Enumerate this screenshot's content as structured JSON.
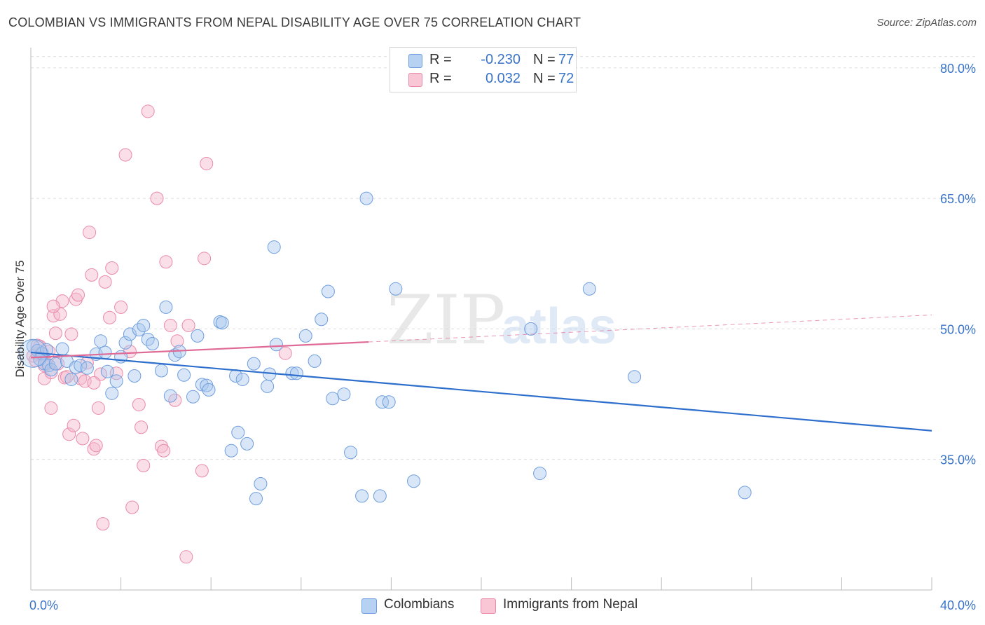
{
  "title": "COLOMBIAN VS IMMIGRANTS FROM NEPAL DISABILITY AGE OVER 75 CORRELATION CHART",
  "source": "Source: ZipAtlas.com",
  "watermark": {
    "zip": "ZIP",
    "atlas": "atlas"
  },
  "legend": {
    "series1": {
      "r_label": "R =",
      "r_value": "-0.230",
      "n_label": "N =",
      "n_value": "77"
    },
    "series2": {
      "r_label": "R =",
      "r_value": "0.032",
      "n_label": "N =",
      "n_value": "72"
    }
  },
  "colors": {
    "blue_fill": "#a9c8ee",
    "blue_stroke": "#6f9ede",
    "blue_line": "#2e6fcd",
    "pink_fill": "#f5b8cb",
    "pink_stroke": "#ea8aa8",
    "pink_line": "#e06a96",
    "tick_text": "#3a74c8",
    "grid": "#dcdcdc"
  },
  "chart_data": {
    "type": "scatter",
    "title": "COLOMBIAN VS IMMIGRANTS FROM NEPAL DISABILITY AGE OVER 75 CORRELATION CHART",
    "xlabel": "",
    "ylabel": "Disability Age Over 75",
    "xlim": [
      0,
      40
    ],
    "ylim": [
      20,
      82
    ],
    "x_tick_labels": [
      "0.0%",
      "40.0%"
    ],
    "y_ticks": [
      35,
      50,
      65,
      80
    ],
    "y_tick_labels": [
      "35.0%",
      "50.0%",
      "65.0%",
      "80.0%"
    ],
    "grid": true,
    "legend_position": "bottom",
    "series": [
      {
        "name": "Colombians",
        "color": "#6f9ede",
        "trend": {
          "x": [
            0,
            40
          ],
          "y": [
            47.3,
            38.3
          ],
          "dashed_extension": false
        },
        "points": [
          [
            0.1,
            48.0
          ],
          [
            0.3,
            47.5
          ],
          [
            0.4,
            46.5
          ],
          [
            0.5,
            47.2
          ],
          [
            0.6,
            46.0
          ],
          [
            0.7,
            47.6
          ],
          [
            0.8,
            45.8
          ],
          [
            0.9,
            45.3
          ],
          [
            1.1,
            46.0
          ],
          [
            1.4,
            47.7
          ],
          [
            1.6,
            46.3
          ],
          [
            1.8,
            44.2
          ],
          [
            2.0,
            45.6
          ],
          [
            2.2,
            45.8
          ],
          [
            2.5,
            45.5
          ],
          [
            2.9,
            47.1
          ],
          [
            3.1,
            48.6
          ],
          [
            3.3,
            47.3
          ],
          [
            3.4,
            45.1
          ],
          [
            3.6,
            42.6
          ],
          [
            3.8,
            44.0
          ],
          [
            4.0,
            46.8
          ],
          [
            4.2,
            48.4
          ],
          [
            4.4,
            49.4
          ],
          [
            4.6,
            44.6
          ],
          [
            4.8,
            49.9
          ],
          [
            5.0,
            50.4
          ],
          [
            5.2,
            48.8
          ],
          [
            5.4,
            48.3
          ],
          [
            5.8,
            45.2
          ],
          [
            6.0,
            52.5
          ],
          [
            6.2,
            42.3
          ],
          [
            6.4,
            47.0
          ],
          [
            6.6,
            47.4
          ],
          [
            6.8,
            44.7
          ],
          [
            7.2,
            42.2
          ],
          [
            7.4,
            49.2
          ],
          [
            7.6,
            43.6
          ],
          [
            7.8,
            43.5
          ],
          [
            7.9,
            43.0
          ],
          [
            8.4,
            50.8
          ],
          [
            8.5,
            50.7
          ],
          [
            8.9,
            36.0
          ],
          [
            9.1,
            44.6
          ],
          [
            9.2,
            38.1
          ],
          [
            9.4,
            44.2
          ],
          [
            9.6,
            36.8
          ],
          [
            9.9,
            46.0
          ],
          [
            10.0,
            30.5
          ],
          [
            10.2,
            32.2
          ],
          [
            10.5,
            43.4
          ],
          [
            10.6,
            44.8
          ],
          [
            10.8,
            59.4
          ],
          [
            10.9,
            48.2
          ],
          [
            11.6,
            44.9
          ],
          [
            11.8,
            44.9
          ],
          [
            12.2,
            49.2
          ],
          [
            12.6,
            46.3
          ],
          [
            12.9,
            51.1
          ],
          [
            13.2,
            54.3
          ],
          [
            13.4,
            42.0
          ],
          [
            13.9,
            42.5
          ],
          [
            14.2,
            35.8
          ],
          [
            14.7,
            30.8
          ],
          [
            14.9,
            65.0
          ],
          [
            15.5,
            30.8
          ],
          [
            15.6,
            41.6
          ],
          [
            15.9,
            41.6
          ],
          [
            16.2,
            54.6
          ],
          [
            17.0,
            32.5
          ],
          [
            22.2,
            50.0
          ],
          [
            22.6,
            33.4
          ],
          [
            24.8,
            54.6
          ],
          [
            26.8,
            44.5
          ],
          [
            31.7,
            31.2
          ]
        ]
      },
      {
        "name": "Immigrants from Nepal",
        "color": "#ea8aa8",
        "trend": {
          "x": [
            0,
            15
          ],
          "y": [
            46.7,
            48.5
          ],
          "dashed_extension": true,
          "dashed_to": [
            40,
            51.6
          ]
        },
        "points": [
          [
            0.1,
            46.9
          ],
          [
            0.2,
            46.4
          ],
          [
            0.3,
            47.2
          ],
          [
            0.4,
            48.0
          ],
          [
            0.5,
            47.1
          ],
          [
            0.6,
            44.3
          ],
          [
            0.7,
            46.0
          ],
          [
            0.8,
            47.4
          ],
          [
            0.9,
            40.9
          ],
          [
            1.0,
            51.5
          ],
          [
            1.1,
            49.5
          ],
          [
            1.2,
            46.0
          ],
          [
            1.3,
            51.7
          ],
          [
            1.4,
            53.2
          ],
          [
            1.5,
            44.4
          ],
          [
            1.6,
            44.5
          ],
          [
            1.7,
            37.9
          ],
          [
            1.8,
            49.4
          ],
          [
            1.9,
            38.9
          ],
          [
            2.0,
            53.4
          ],
          [
            2.1,
            53.9
          ],
          [
            2.2,
            44.3
          ],
          [
            2.3,
            37.4
          ],
          [
            2.4,
            44.0
          ],
          [
            2.5,
            46.1
          ],
          [
            2.6,
            61.1
          ],
          [
            2.7,
            56.2
          ],
          [
            2.8,
            36.2
          ],
          [
            2.9,
            36.6
          ],
          [
            3.0,
            40.9
          ],
          [
            3.1,
            44.8
          ],
          [
            3.2,
            27.6
          ],
          [
            3.3,
            55.4
          ],
          [
            3.5,
            51.3
          ],
          [
            3.6,
            57.0
          ],
          [
            3.8,
            44.9
          ],
          [
            4.0,
            52.5
          ],
          [
            4.2,
            70.0
          ],
          [
            4.4,
            47.4
          ],
          [
            4.5,
            29.5
          ],
          [
            4.8,
            41.3
          ],
          [
            4.9,
            38.7
          ],
          [
            5.0,
            34.3
          ],
          [
            5.2,
            75.0
          ],
          [
            5.6,
            65.0
          ],
          [
            5.8,
            36.5
          ],
          [
            5.9,
            36.0
          ],
          [
            6.0,
            57.7
          ],
          [
            6.2,
            50.4
          ],
          [
            6.4,
            41.8
          ],
          [
            6.5,
            48.6
          ],
          [
            6.9,
            23.8
          ],
          [
            7.0,
            50.4
          ],
          [
            7.6,
            33.7
          ],
          [
            7.7,
            58.1
          ],
          [
            7.8,
            69.0
          ],
          [
            11.3,
            47.2
          ],
          [
            1.0,
            52.6
          ],
          [
            0.3,
            48.1
          ],
          [
            0.6,
            45.8
          ],
          [
            0.9,
            45.0
          ],
          [
            2.8,
            43.8
          ]
        ]
      }
    ]
  },
  "bottom_legend": {
    "series1": "Colombians",
    "series2": "Immigrants from Nepal"
  }
}
